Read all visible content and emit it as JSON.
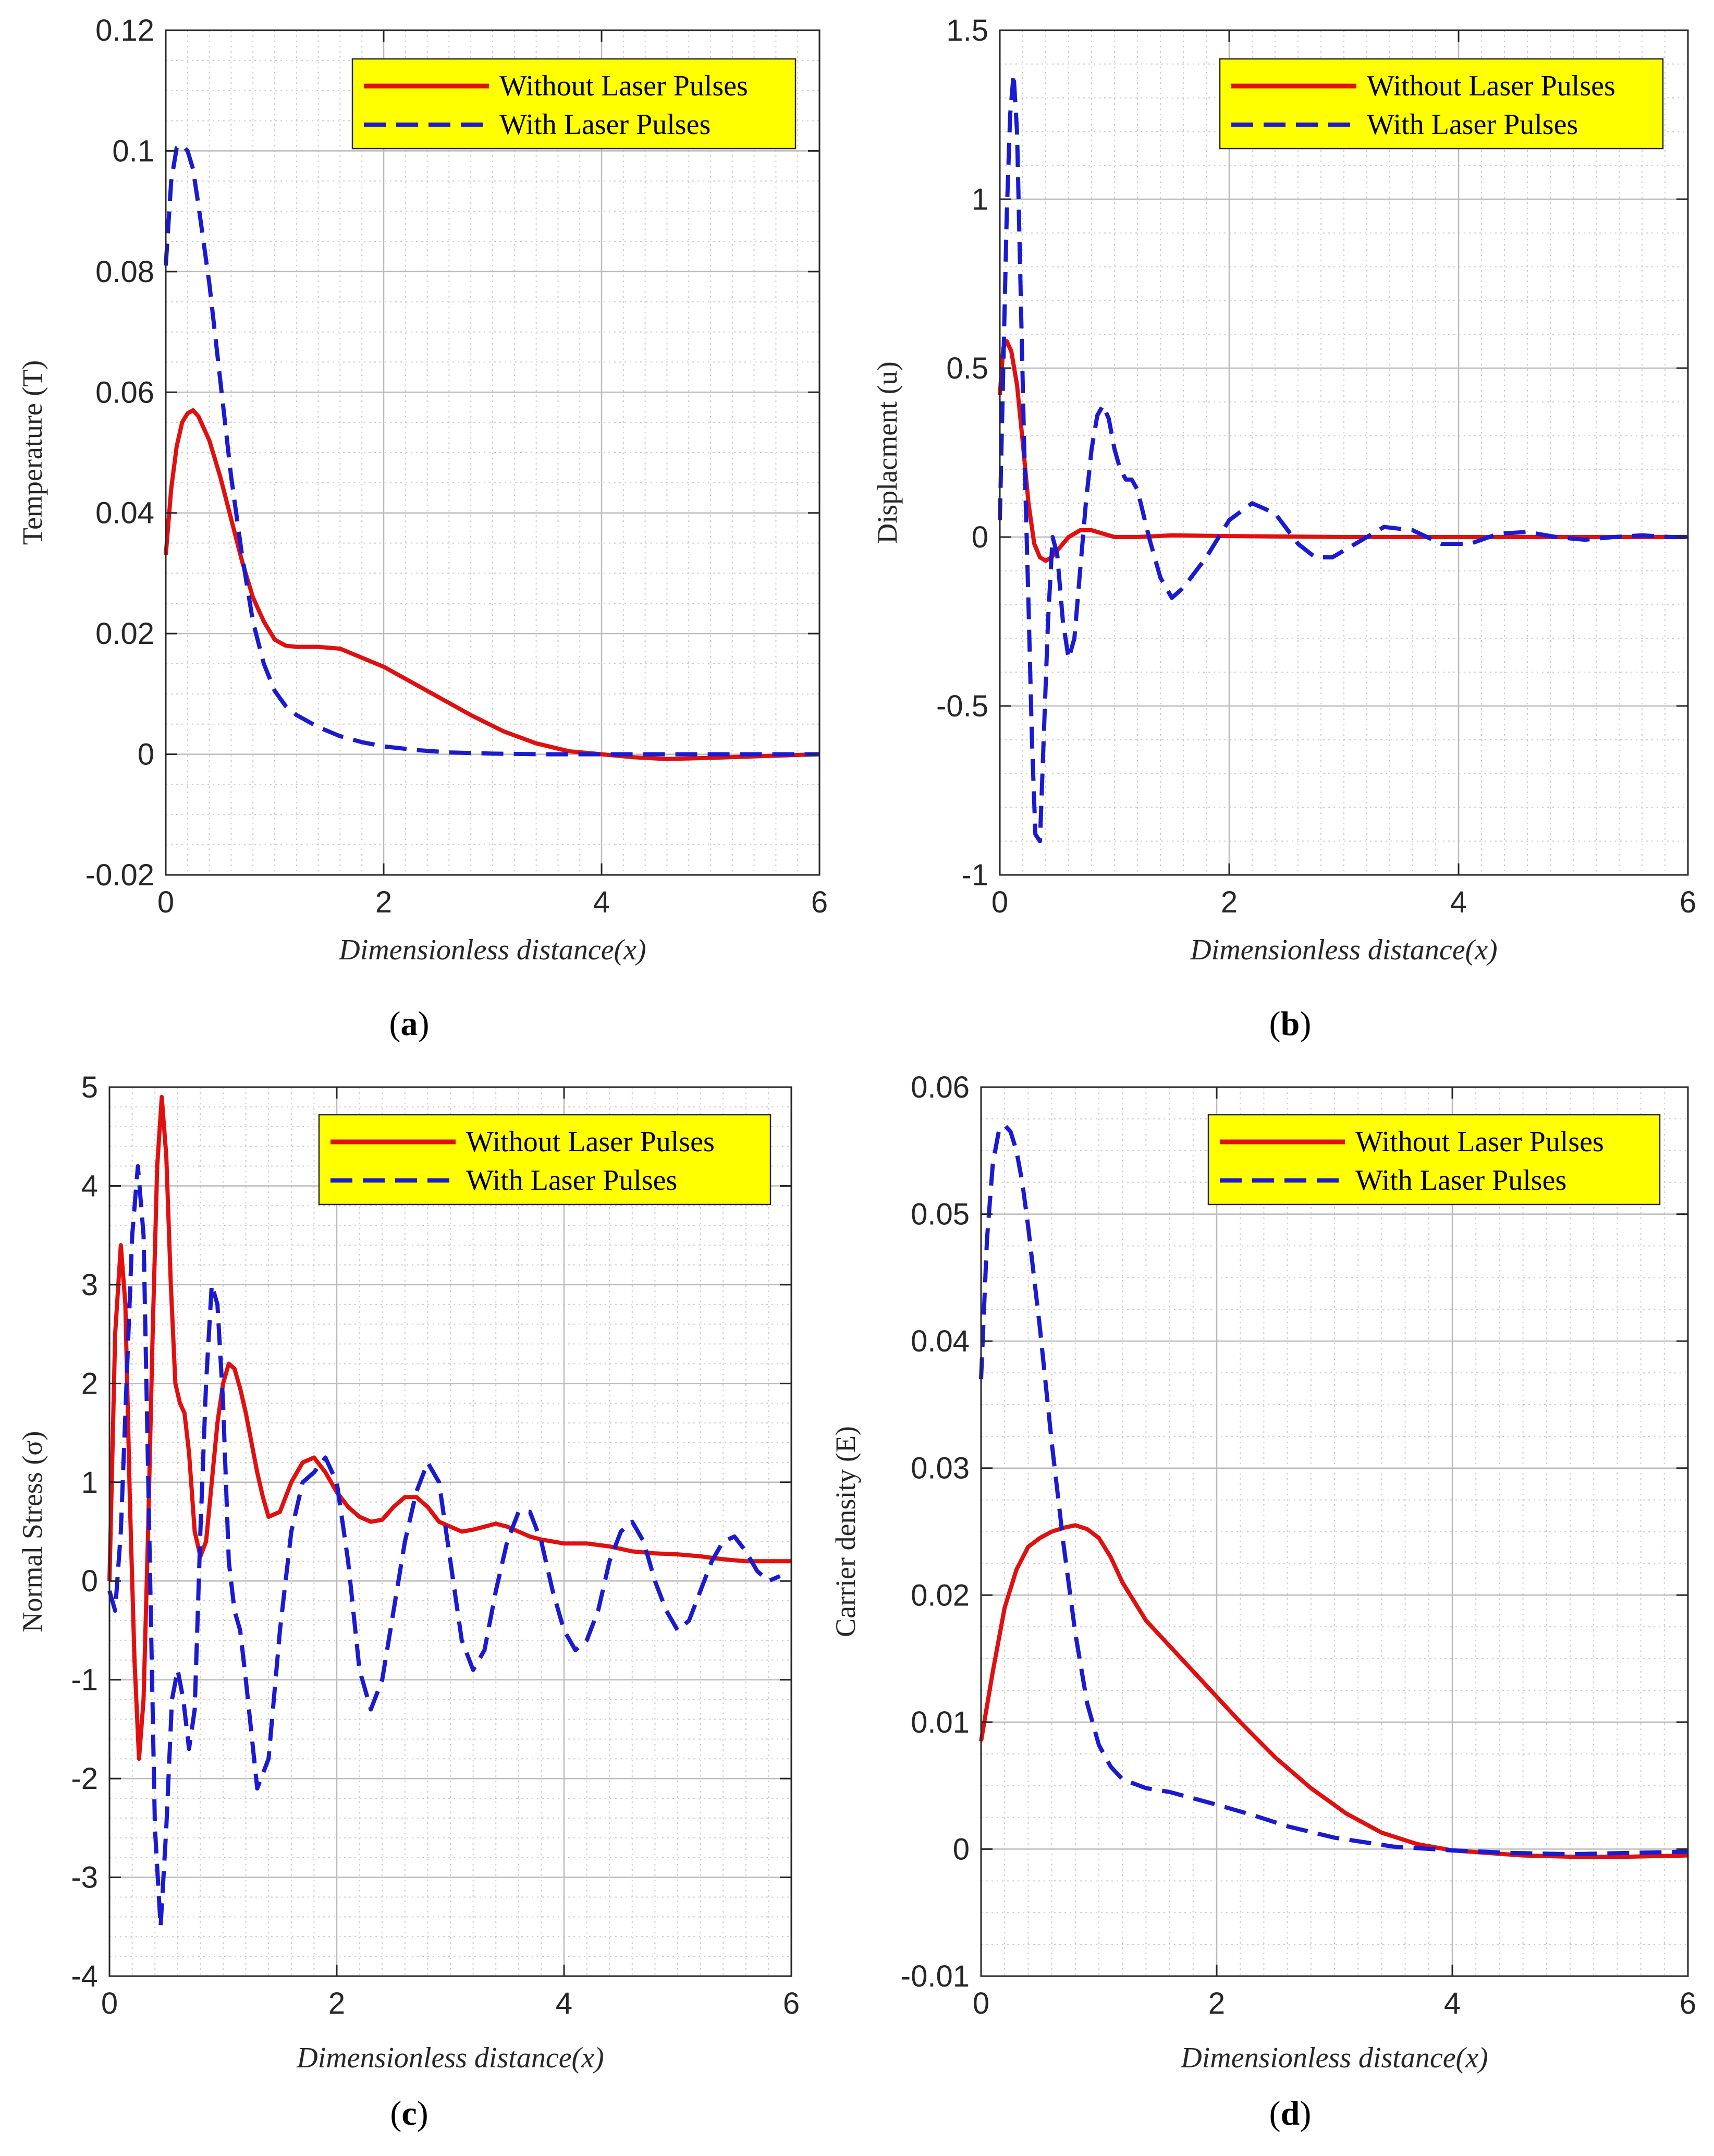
{
  "figure": {
    "colors": {
      "without": "#e01010",
      "with": "#1a1ad0",
      "legend_bg": "#ffff00",
      "grid_major": "#bbbbbb",
      "grid_minor": "#cccccc",
      "axis": "#262626"
    },
    "legend": {
      "without": "Without Laser Pulses",
      "with": "With Laser Pulses",
      "placement": "top-right"
    }
  },
  "chart_data": [
    {
      "id": "a",
      "type": "line",
      "caption_letter": "a",
      "xlabel": "Dimensionless distance(x)",
      "ylabel": "Temperature  (T)",
      "xlim": [
        0,
        6
      ],
      "ylim": [
        -0.02,
        0.12
      ],
      "xticks": [
        0,
        2,
        4,
        6
      ],
      "xtick_labels": [
        "0",
        "2",
        "4",
        "6"
      ],
      "yticks": [
        -0.02,
        0,
        0.02,
        0.04,
        0.06,
        0.08,
        0.1,
        0.12
      ],
      "ytick_labels": [
        "-0.02",
        "0",
        "0.02",
        "0.04",
        "0.06",
        "0.08",
        "0.1",
        "0.12"
      ],
      "minor_x": 0.2,
      "minor_y": 0.005,
      "series": [
        {
          "name": "Without Laser Pulses",
          "style": "solid",
          "x": [
            0,
            0.05,
            0.1,
            0.15,
            0.2,
            0.25,
            0.3,
            0.4,
            0.5,
            0.6,
            0.7,
            0.8,
            0.9,
            1.0,
            1.1,
            1.2,
            1.4,
            1.6,
            1.8,
            2.0,
            2.2,
            2.5,
            2.8,
            3.1,
            3.4,
            3.7,
            4.0,
            4.3,
            4.6,
            5.0,
            5.5,
            6.0
          ],
          "y": [
            0.033,
            0.044,
            0.051,
            0.055,
            0.0565,
            0.057,
            0.056,
            0.052,
            0.046,
            0.039,
            0.032,
            0.026,
            0.022,
            0.019,
            0.018,
            0.0178,
            0.0178,
            0.0175,
            0.016,
            0.0145,
            0.0125,
            0.0095,
            0.0065,
            0.0038,
            0.0018,
            0.0005,
            0.0,
            -0.0005,
            -0.0008,
            -0.0006,
            -0.0003,
            0.0
          ]
        },
        {
          "name": "With Laser Pulses",
          "style": "dashed",
          "x": [
            0,
            0.05,
            0.1,
            0.15,
            0.2,
            0.25,
            0.3,
            0.4,
            0.5,
            0.6,
            0.7,
            0.8,
            0.9,
            1.0,
            1.1,
            1.2,
            1.4,
            1.6,
            1.8,
            2.0,
            2.3,
            2.6,
            3.0,
            3.5,
            4.0,
            5.0,
            6.0
          ],
          "y": [
            0.081,
            0.095,
            0.1005,
            0.101,
            0.1,
            0.097,
            0.091,
            0.078,
            0.062,
            0.046,
            0.033,
            0.022,
            0.015,
            0.0105,
            0.008,
            0.0065,
            0.0045,
            0.003,
            0.002,
            0.0013,
            0.0007,
            0.0003,
            0.0001,
            0.0,
            0.0,
            0.0,
            0.0
          ]
        }
      ]
    },
    {
      "id": "b",
      "type": "line",
      "caption_letter": "b",
      "xlabel": "Dimensionless distance(x)",
      "ylabel": "Displacment  (u)",
      "xlim": [
        0,
        6
      ],
      "ylim": [
        -1,
        1.5
      ],
      "xticks": [
        0,
        2,
        4,
        6
      ],
      "xtick_labels": [
        "0",
        "2",
        "4",
        "6"
      ],
      "yticks": [
        -1,
        -0.5,
        0,
        0.5,
        1,
        1.5
      ],
      "ytick_labels": [
        "-1",
        "-0.5",
        "0",
        "0.5",
        "1",
        "1.5"
      ],
      "minor_x": 0.2,
      "minor_y": 0.1,
      "series": [
        {
          "name": "Without Laser Pulses",
          "style": "solid",
          "x": [
            0,
            0.03,
            0.06,
            0.1,
            0.15,
            0.2,
            0.25,
            0.3,
            0.35,
            0.4,
            0.45,
            0.5,
            0.6,
            0.7,
            0.8,
            0.9,
            1.0,
            1.2,
            1.5,
            2.0,
            3.0,
            4.0,
            5.0,
            6.0
          ],
          "y": [
            0.42,
            0.56,
            0.58,
            0.55,
            0.45,
            0.28,
            0.1,
            -0.02,
            -0.06,
            -0.07,
            -0.06,
            -0.04,
            0.0,
            0.02,
            0.02,
            0.01,
            0.0,
            0.0,
            0.005,
            0.003,
            0.0,
            0.0,
            0.0,
            0.0
          ]
        },
        {
          "name": "With Laser Pulses",
          "style": "dashed",
          "x": [
            0,
            0.03,
            0.06,
            0.09,
            0.12,
            0.15,
            0.18,
            0.21,
            0.25,
            0.28,
            0.31,
            0.35,
            0.38,
            0.42,
            0.46,
            0.5,
            0.55,
            0.6,
            0.65,
            0.7,
            0.75,
            0.8,
            0.85,
            0.9,
            0.95,
            1.0,
            1.05,
            1.1,
            1.15,
            1.2,
            1.3,
            1.4,
            1.5,
            1.6,
            1.8,
            2.0,
            2.2,
            2.4,
            2.6,
            2.75,
            2.9,
            3.1,
            3.35,
            3.6,
            3.85,
            4.1,
            4.35,
            4.6,
            4.85,
            5.1,
            5.35,
            5.6,
            5.85,
            6.0
          ],
          "y": [
            0.05,
            0.5,
            0.95,
            1.25,
            1.37,
            1.2,
            0.75,
            0.3,
            -0.2,
            -0.6,
            -0.88,
            -0.9,
            -0.62,
            -0.25,
            0.0,
            -0.05,
            -0.25,
            -0.36,
            -0.3,
            -0.1,
            0.1,
            0.26,
            0.36,
            0.39,
            0.35,
            0.26,
            0.2,
            0.17,
            0.17,
            0.14,
            0.0,
            -0.12,
            -0.18,
            -0.15,
            -0.06,
            0.05,
            0.1,
            0.07,
            -0.02,
            -0.06,
            -0.06,
            -0.02,
            0.03,
            0.02,
            -0.02,
            -0.02,
            0.01,
            0.015,
            0.0,
            -0.008,
            0.0,
            0.005,
            0.0,
            0.0
          ]
        }
      ]
    },
    {
      "id": "c",
      "type": "line",
      "caption_letter": "c",
      "xlabel": "Dimensionless distance(x)",
      "ylabel": "Normal Stress (σ)",
      "xlim": [
        0,
        6
      ],
      "ylim": [
        -4,
        5
      ],
      "xticks": [
        0,
        2,
        4,
        6
      ],
      "xtick_labels": [
        "0",
        "2",
        "4",
        "6"
      ],
      "yticks": [
        -4,
        -3,
        -2,
        -1,
        0,
        1,
        2,
        3,
        4,
        5
      ],
      "ytick_labels": [
        "-4",
        "-3",
        "-2",
        "-1",
        "0",
        "1",
        "2",
        "3",
        "4",
        "5"
      ],
      "minor_x": 0.2,
      "minor_y": 0.2,
      "series": [
        {
          "name": "Without Laser Pulses",
          "style": "solid",
          "x": [
            0,
            0.05,
            0.1,
            0.14,
            0.18,
            0.22,
            0.26,
            0.3,
            0.34,
            0.38,
            0.42,
            0.46,
            0.5,
            0.54,
            0.58,
            0.62,
            0.66,
            0.7,
            0.75,
            0.8,
            0.85,
            0.9,
            0.95,
            1.0,
            1.05,
            1.1,
            1.15,
            1.2,
            1.25,
            1.3,
            1.35,
            1.4,
            1.5,
            1.6,
            1.7,
            1.8,
            1.9,
            2.0,
            2.1,
            2.2,
            2.3,
            2.4,
            2.5,
            2.6,
            2.7,
            2.8,
            2.9,
            3.0,
            3.1,
            3.2,
            3.3,
            3.4,
            3.5,
            3.6,
            3.7,
            3.8,
            3.9,
            4.0,
            4.2,
            4.4,
            4.6,
            4.8,
            5.0,
            5.2,
            5.4,
            5.6,
            5.8,
            6.0
          ],
          "y": [
            0.0,
            2.5,
            3.4,
            2.8,
            0.8,
            -0.8,
            -1.8,
            -1.2,
            0.5,
            2.5,
            4.2,
            4.9,
            4.3,
            3.0,
            2.0,
            1.8,
            1.7,
            1.3,
            0.5,
            0.25,
            0.4,
            1.0,
            1.6,
            2.0,
            2.2,
            2.15,
            1.95,
            1.7,
            1.4,
            1.1,
            0.85,
            0.65,
            0.7,
            1.0,
            1.2,
            1.25,
            1.1,
            0.9,
            0.75,
            0.65,
            0.6,
            0.62,
            0.75,
            0.85,
            0.85,
            0.75,
            0.6,
            0.55,
            0.5,
            0.52,
            0.55,
            0.58,
            0.55,
            0.5,
            0.45,
            0.42,
            0.4,
            0.38,
            0.38,
            0.35,
            0.3,
            0.28,
            0.27,
            0.25,
            0.22,
            0.2,
            0.2,
            0.2
          ]
        },
        {
          "name": "With Laser Pulses",
          "style": "dashed",
          "x": [
            0,
            0.05,
            0.1,
            0.15,
            0.2,
            0.25,
            0.3,
            0.35,
            0.4,
            0.45,
            0.5,
            0.55,
            0.6,
            0.65,
            0.7,
            0.75,
            0.8,
            0.85,
            0.9,
            0.95,
            1.0,
            1.05,
            1.1,
            1.15,
            1.2,
            1.3,
            1.4,
            1.5,
            1.6,
            1.7,
            1.8,
            1.9,
            2.0,
            2.1,
            2.2,
            2.3,
            2.4,
            2.5,
            2.6,
            2.7,
            2.8,
            2.9,
            3.0,
            3.1,
            3.2,
            3.3,
            3.4,
            3.5,
            3.6,
            3.7,
            3.8,
            3.9,
            4.0,
            4.1,
            4.2,
            4.3,
            4.4,
            4.5,
            4.6,
            4.7,
            4.8,
            4.9,
            5.0,
            5.1,
            5.2,
            5.3,
            5.4,
            5.5,
            5.6,
            5.7,
            5.8,
            5.9
          ],
          "y": [
            -0.1,
            -0.3,
            0.5,
            2.0,
            3.5,
            4.2,
            3.5,
            0.5,
            -2.5,
            -3.5,
            -2.5,
            -1.2,
            -0.9,
            -1.2,
            -1.7,
            -1.3,
            0.5,
            2.0,
            3.0,
            2.8,
            1.8,
            0.2,
            -0.3,
            -0.5,
            -1.0,
            -2.1,
            -1.8,
            -0.5,
            0.5,
            1.0,
            1.1,
            1.25,
            1.0,
            0.2,
            -0.9,
            -1.3,
            -1.0,
            -0.3,
            0.4,
            0.9,
            1.2,
            1.0,
            0.2,
            -0.6,
            -0.9,
            -0.7,
            -0.1,
            0.4,
            0.7,
            0.7,
            0.4,
            -0.1,
            -0.5,
            -0.7,
            -0.6,
            -0.3,
            0.2,
            0.5,
            0.6,
            0.4,
            0.0,
            -0.3,
            -0.5,
            -0.4,
            -0.1,
            0.2,
            0.4,
            0.45,
            0.3,
            0.1,
            0.0,
            0.05
          ]
        }
      ]
    },
    {
      "id": "d",
      "type": "line",
      "caption_letter": "d",
      "xlabel": "Dimensionless distance(x)",
      "ylabel": "Carrier density  (E)",
      "xlim": [
        0,
        6
      ],
      "ylim": [
        -0.01,
        0.06
      ],
      "xticks": [
        0,
        2,
        4,
        6
      ],
      "xtick_labels": [
        "0",
        "2",
        "4",
        "6"
      ],
      "yticks": [
        -0.01,
        0,
        0.01,
        0.02,
        0.03,
        0.04,
        0.05,
        0.06
      ],
      "ytick_labels": [
        "-0.01",
        "0",
        "0.01",
        "0.02",
        "0.03",
        "0.04",
        "0.05",
        "0.06"
      ],
      "minor_x": 0.2,
      "minor_y": 0.0025,
      "series": [
        {
          "name": "Without Laser Pulses",
          "style": "solid",
          "x": [
            0,
            0.1,
            0.2,
            0.3,
            0.4,
            0.5,
            0.6,
            0.7,
            0.8,
            0.9,
            1.0,
            1.1,
            1.2,
            1.4,
            1.6,
            1.8,
            2.0,
            2.2,
            2.5,
            2.8,
            3.1,
            3.4,
            3.7,
            4.0,
            4.3,
            4.6,
            5.0,
            5.5,
            6.0
          ],
          "y": [
            0.0085,
            0.014,
            0.019,
            0.022,
            0.0238,
            0.0245,
            0.025,
            0.0253,
            0.0255,
            0.0252,
            0.0245,
            0.023,
            0.021,
            0.018,
            0.016,
            0.014,
            0.012,
            0.01,
            0.0072,
            0.0048,
            0.0028,
            0.0013,
            0.0004,
            -0.0001,
            -0.0003,
            -0.0005,
            -0.0006,
            -0.0006,
            -0.0005
          ]
        },
        {
          "name": "With Laser Pulses",
          "style": "dashed",
          "x": [
            0,
            0.05,
            0.1,
            0.15,
            0.2,
            0.25,
            0.3,
            0.35,
            0.4,
            0.5,
            0.6,
            0.7,
            0.8,
            0.9,
            1.0,
            1.1,
            1.2,
            1.4,
            1.6,
            1.8,
            2.0,
            2.3,
            2.6,
            3.0,
            3.5,
            4.0,
            4.5,
            5.0,
            5.5,
            6.0
          ],
          "y": [
            0.037,
            0.048,
            0.054,
            0.0565,
            0.057,
            0.0565,
            0.055,
            0.0525,
            0.049,
            0.041,
            0.032,
            0.024,
            0.017,
            0.0115,
            0.0082,
            0.0065,
            0.0055,
            0.0048,
            0.0045,
            0.004,
            0.0035,
            0.0027,
            0.0018,
            0.0009,
            0.0002,
            -0.0001,
            -0.0003,
            -0.0004,
            -0.0003,
            -0.0002
          ]
        }
      ]
    }
  ]
}
